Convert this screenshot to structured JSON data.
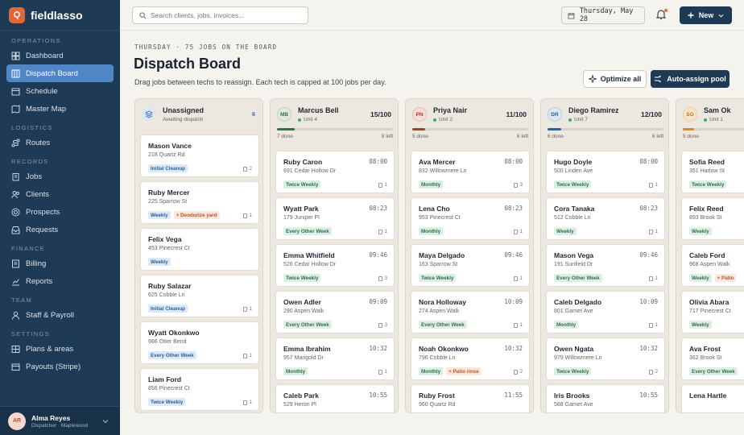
{
  "app": {
    "name": "fieldlasso"
  },
  "sidebar": {
    "sections": [
      {
        "title": "OPERATIONS",
        "items": [
          {
            "label": "Dashboard",
            "icon": "grid-icon"
          },
          {
            "label": "Dispatch Board",
            "icon": "board-icon",
            "active": true
          },
          {
            "label": "Schedule",
            "icon": "calendar-icon"
          },
          {
            "label": "Master Map",
            "icon": "map-icon"
          }
        ]
      },
      {
        "title": "LOGISTICS",
        "items": [
          {
            "label": "Routes",
            "icon": "route-icon"
          }
        ]
      },
      {
        "title": "RECORDS",
        "items": [
          {
            "label": "Jobs",
            "icon": "clipboard-icon"
          },
          {
            "label": "Clients",
            "icon": "users-icon"
          },
          {
            "label": "Prospects",
            "icon": "target-icon"
          },
          {
            "label": "Requests",
            "icon": "inbox-icon"
          }
        ]
      },
      {
        "title": "FINANCE",
        "items": [
          {
            "label": "Billing",
            "icon": "invoice-icon"
          },
          {
            "label": "Reports",
            "icon": "chart-icon"
          }
        ]
      },
      {
        "title": "TEAM",
        "items": [
          {
            "label": "Staff & Payroll",
            "icon": "person-icon"
          }
        ]
      },
      {
        "title": "SETTINGS",
        "items": [
          {
            "label": "Plans & areas",
            "icon": "layers-icon"
          },
          {
            "label": "Payouts (Stripe)",
            "icon": "wallet-icon"
          }
        ]
      }
    ],
    "user": {
      "initials": "AR",
      "name": "Alma Reyes",
      "role": "Dispatcher · Maplewood"
    }
  },
  "topbar": {
    "search_placeholder": "Search clients, jobs, invoices...",
    "date": "Thursday, May 28",
    "new_label": "New"
  },
  "header": {
    "kicker": "THURSDAY · 75 JOBS ON THE BOARD",
    "title": "Dispatch Board",
    "subtitle": "Drag jobs between techs to reassign. Each tech is capped at 100 jobs per day.",
    "optimize_label": "Optimize all",
    "autoassign_label": "Auto-assign pool"
  },
  "colors": {
    "accent": "#1f3a55",
    "brand": "#e0673a",
    "active_nav": "#4f86c6"
  },
  "columns": [
    {
      "type": "unassigned",
      "title": "Unassigned",
      "subtitle": "Awaiting dispatch",
      "count": "6",
      "cards": [
        {
          "name": "Mason Vance",
          "addr": "218 Quartz Rd",
          "tags": [
            {
              "label": "Initial Cleanup",
              "kind": "init"
            }
          ],
          "n": "2"
        },
        {
          "name": "Ruby Mercer",
          "addr": "225 Sparrow St",
          "tags": [
            {
              "label": "Weekly",
              "kind": "init"
            },
            {
              "label": "+ Deodorize yard",
              "kind": "extra"
            }
          ],
          "n": "1"
        },
        {
          "name": "Felix Vega",
          "addr": "453 Pinecrest Ct",
          "tags": [
            {
              "label": "Weekly",
              "kind": "init"
            }
          ],
          "n": ""
        },
        {
          "name": "Ruby Salazar",
          "addr": "625 Cobble Ln",
          "tags": [
            {
              "label": "Initial Cleanup",
              "kind": "init"
            }
          ],
          "n": "1"
        },
        {
          "name": "Wyatt Okonkwo",
          "addr": "986 Otter Bend",
          "tags": [
            {
              "label": "Every Other Week",
              "kind": "init"
            }
          ],
          "n": "1"
        },
        {
          "name": "Liam Ford",
          "addr": "856 Pinecrest Ct",
          "tags": [
            {
              "label": "Twice Weekly",
              "kind": "init"
            }
          ],
          "n": "1"
        }
      ]
    },
    {
      "type": "tech",
      "initials": "MB",
      "avatar_bg": "#dfe9df",
      "avatar_fg": "#3d6b47",
      "title": "Marcus Bell",
      "unit": "Unit 4",
      "count": "15/100",
      "done": "7 done",
      "left": "8 left",
      "progress": 0.15,
      "bar_color": "#3d6b47",
      "cards": [
        {
          "name": "Ruby Caron",
          "time": "08:00",
          "addr": "691 Cedar Hollow Dr",
          "tags": [
            {
              "label": "Twice Weekly",
              "kind": "freq"
            }
          ],
          "n": "1"
        },
        {
          "name": "Wyatt Park",
          "time": "08:23",
          "addr": "179 Juniper Pl",
          "tags": [
            {
              "label": "Every Other Week",
              "kind": "freq"
            }
          ],
          "n": "1"
        },
        {
          "name": "Emma Whitfield",
          "time": "09:46",
          "addr": "526 Cedar Hollow Dr",
          "tags": [
            {
              "label": "Twice Weekly",
              "kind": "freq"
            }
          ],
          "n": "3"
        },
        {
          "name": "Owen Adler",
          "time": "09:09",
          "addr": "290 Aspen Walk",
          "tags": [
            {
              "label": "Every Other Week",
              "kind": "freq"
            }
          ],
          "n": "3"
        },
        {
          "name": "Emma Ibrahim",
          "time": "10:32",
          "addr": "957 Marigold Dr",
          "tags": [
            {
              "label": "Monthly",
              "kind": "freq"
            }
          ],
          "n": "1"
        },
        {
          "name": "Caleb Park",
          "time": "10:55",
          "addr": "529 Heron Pl",
          "tags": [],
          "n": ""
        }
      ]
    },
    {
      "type": "tech",
      "initials": "PN",
      "avatar_bg": "#f6dcd6",
      "avatar_fg": "#b03a2e",
      "title": "Priya Nair",
      "unit": "Unit 2",
      "count": "11/100",
      "done": "5 done",
      "left": "6 left",
      "progress": 0.11,
      "bar_color": "#b03a2e",
      "cards": [
        {
          "name": "Ava Mercer",
          "time": "08:00",
          "addr": "832 Willowmere Ln",
          "tags": [
            {
              "label": "Monthly",
              "kind": "freq"
            }
          ],
          "n": "3"
        },
        {
          "name": "Lena Cho",
          "time": "08:23",
          "addr": "953 Pinecrest Ct",
          "tags": [
            {
              "label": "Monthly",
              "kind": "freq"
            }
          ],
          "n": "1"
        },
        {
          "name": "Maya Delgado",
          "time": "09:46",
          "addr": "163 Sparrow St",
          "tags": [
            {
              "label": "Twice Weekly",
              "kind": "freq"
            }
          ],
          "n": "1"
        },
        {
          "name": "Nora Holloway",
          "time": "10:09",
          "addr": "274 Aspen Walk",
          "tags": [
            {
              "label": "Every Other Week",
              "kind": "freq"
            }
          ],
          "n": "1"
        },
        {
          "name": "Noah Okonkwo",
          "time": "10:32",
          "addr": "796 Cobble Ln",
          "tags": [
            {
              "label": "Monthly",
              "kind": "freq"
            },
            {
              "label": "+ Patio rinse",
              "kind": "extra"
            }
          ],
          "n": "2"
        },
        {
          "name": "Ruby Frost",
          "time": "11:55",
          "addr": "960 Quartz Rd",
          "tags": [],
          "n": ""
        }
      ]
    },
    {
      "type": "tech",
      "initials": "DR",
      "avatar_bg": "#dde6f1",
      "avatar_fg": "#2d5f98",
      "title": "Diego Ramirez",
      "unit": "Unit 7",
      "count": "12/100",
      "done": "6 done",
      "left": "6 left",
      "progress": 0.12,
      "bar_color": "#2d5f98",
      "cards": [
        {
          "name": "Hugo Doyle",
          "time": "08:00",
          "addr": "500 Linden Ave",
          "tags": [
            {
              "label": "Twice Weekly",
              "kind": "freq"
            }
          ],
          "n": "1"
        },
        {
          "name": "Cora Tanaka",
          "time": "08:23",
          "addr": "512 Cobble Ln",
          "tags": [
            {
              "label": "Weekly",
              "kind": "freq"
            }
          ],
          "n": "1"
        },
        {
          "name": "Mason Vega",
          "time": "09:46",
          "addr": "191 Sunfield Dr",
          "tags": [
            {
              "label": "Every Other Week",
              "kind": "freq"
            }
          ],
          "n": "1"
        },
        {
          "name": "Caleb Delgado",
          "time": "10:09",
          "addr": "801 Garnet Ave",
          "tags": [
            {
              "label": "Monthly",
              "kind": "freq"
            }
          ],
          "n": "1"
        },
        {
          "name": "Owen Ngata",
          "time": "10:32",
          "addr": "979 Willowmere Ln",
          "tags": [
            {
              "label": "Twice Weekly",
              "kind": "freq"
            }
          ],
          "n": "2"
        },
        {
          "name": "Iris Brooks",
          "time": "10:55",
          "addr": "588 Garnet Ave",
          "tags": [],
          "n": ""
        }
      ]
    },
    {
      "type": "tech",
      "initials": "SO",
      "avatar_bg": "#f7e4c9",
      "avatar_fg": "#b8741a",
      "title": "Sam Ok",
      "unit": "Unit 1",
      "count": "",
      "done": "5 done",
      "left": "",
      "progress": 0.1,
      "bar_color": "#d4892a",
      "cards": [
        {
          "name": "Sofia Reed",
          "time": "",
          "addr": "351 Harlow St",
          "tags": [
            {
              "label": "Twice Weekly",
              "kind": "freq"
            }
          ],
          "n": "1"
        },
        {
          "name": "Felix Reed",
          "time": "",
          "addr": "893 Brook St",
          "tags": [
            {
              "label": "Weekly",
              "kind": "freq"
            }
          ],
          "n": ""
        },
        {
          "name": "Caleb Ford",
          "time": "",
          "addr": "968 Aspen Walk",
          "tags": [
            {
              "label": "Weekly",
              "kind": "freq"
            },
            {
              "label": "+ Patio",
              "kind": "extra"
            }
          ],
          "n": ""
        },
        {
          "name": "Olivia Abara",
          "time": "",
          "addr": "717 Pinecrest Ct",
          "tags": [
            {
              "label": "Weekly",
              "kind": "freq"
            }
          ],
          "n": ""
        },
        {
          "name": "Ava Frost",
          "time": "",
          "addr": "362 Brook St",
          "tags": [
            {
              "label": "Every Other Week",
              "kind": "freq"
            }
          ],
          "n": ""
        },
        {
          "name": "Lena Hartle",
          "time": "",
          "addr": "",
          "tags": [],
          "n": ""
        }
      ]
    }
  ]
}
